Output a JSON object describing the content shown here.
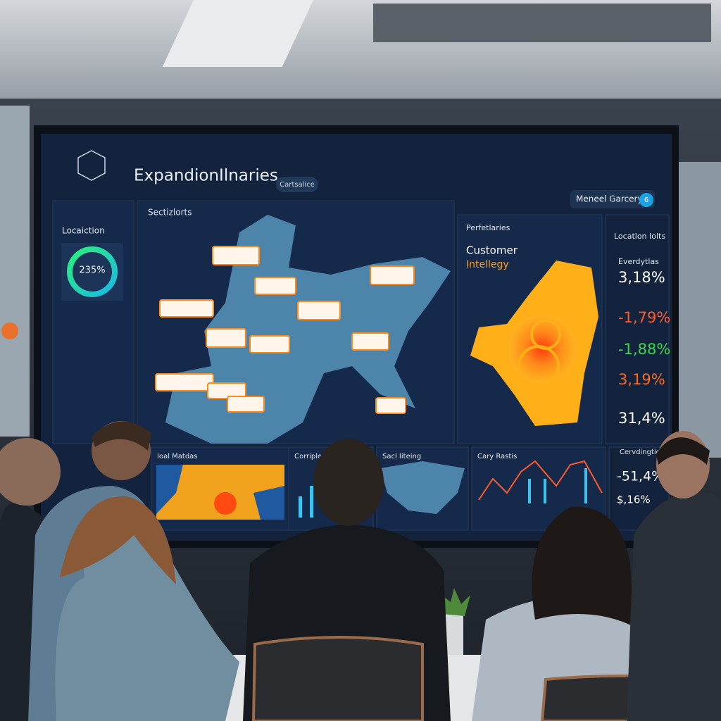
{
  "screen": {
    "header": {
      "title": "ExpandionIlnaries",
      "badge": "Cartsalice",
      "user": "Meneel Garcery",
      "user_badge": "6"
    },
    "sidebar": {
      "label": "Locaiction",
      "gauge": "235%"
    },
    "map_panel": {
      "title": "Sectizlorts"
    },
    "insight_panel": {
      "label": "Perfetlaries",
      "heading": "Customer",
      "subheading": "Intellegy"
    },
    "metrics_panel": {
      "title": "Locatlon Iolts",
      "subtitle": "Everdytlas",
      "values": [
        "3,18%",
        "-1,79%",
        "-1,88%",
        "3,19%",
        "31,4%"
      ]
    },
    "bottom_panels": [
      "Ioal Matdas",
      "Corripleo",
      "Sacl Iiteing",
      "Cary Rastis"
    ],
    "bottom_metrics": {
      "title": "Cervdingtion",
      "values": [
        "-51,4%",
        "$,16%"
      ]
    }
  }
}
